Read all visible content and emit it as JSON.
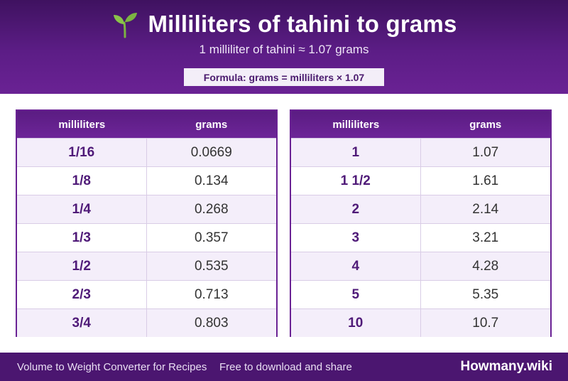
{
  "header": {
    "icon": "sprout-icon",
    "title": "Milliliters of tahini to grams",
    "subtitle": "1 milliliter of tahini ≈ 1.07 grams",
    "formula": "Formula: grams = milliliters × 1.07"
  },
  "tables": [
    {
      "col_ml": "milliliters",
      "col_g": "grams",
      "rows": [
        {
          "ml": "1/16",
          "g": "0.0669"
        },
        {
          "ml": "1/8",
          "g": "0.134"
        },
        {
          "ml": "1/4",
          "g": "0.268"
        },
        {
          "ml": "1/3",
          "g": "0.357"
        },
        {
          "ml": "1/2",
          "g": "0.535"
        },
        {
          "ml": "2/3",
          "g": "0.713"
        },
        {
          "ml": "3/4",
          "g": "0.803"
        }
      ]
    },
    {
      "col_ml": "milliliters",
      "col_g": "grams",
      "rows": [
        {
          "ml": "1",
          "g": "1.07"
        },
        {
          "ml": "1 1/2",
          "g": "1.61"
        },
        {
          "ml": "2",
          "g": "2.14"
        },
        {
          "ml": "3",
          "g": "3.21"
        },
        {
          "ml": "4",
          "g": "4.28"
        },
        {
          "ml": "5",
          "g": "5.35"
        },
        {
          "ml": "10",
          "g": "10.7"
        }
      ]
    }
  ],
  "footer": {
    "left_text": "Volume to Weight Converter for Recipes",
    "middle_text": "Free to download and share",
    "brand": "Howmany.wiki"
  },
  "colors": {
    "header_bg": "#5c1d86",
    "accent": "#6a2294",
    "footer_bg": "#4b1670",
    "sprout_green": "#8bc34a"
  }
}
